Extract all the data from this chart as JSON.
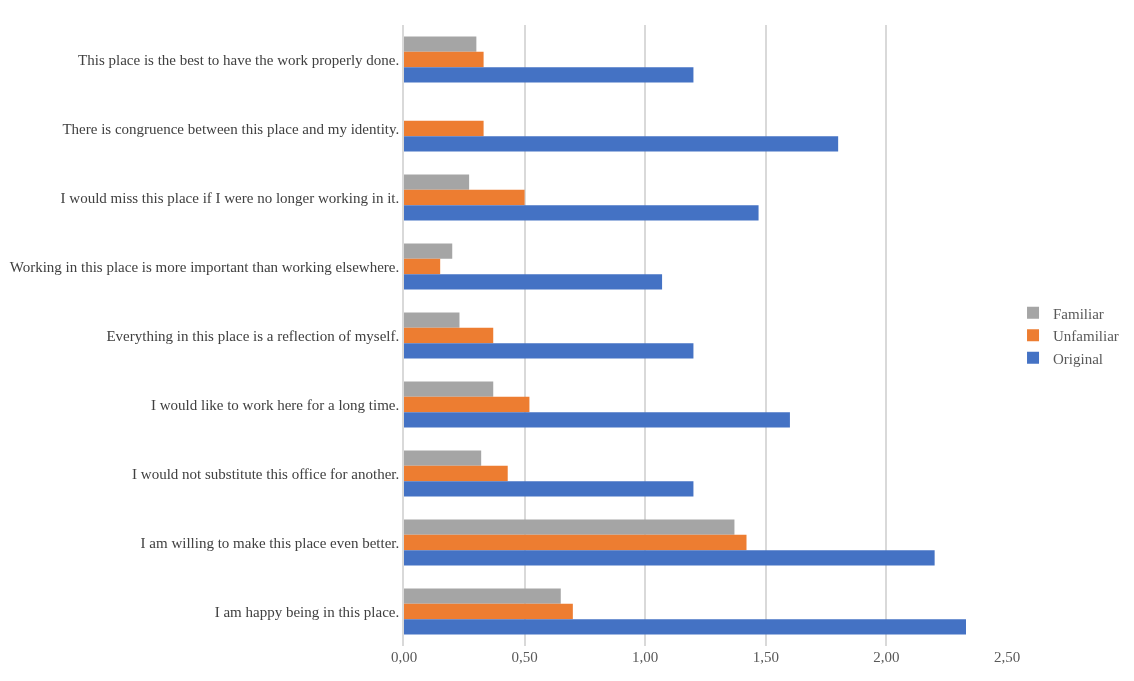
{
  "chart_data": {
    "type": "bar",
    "orientation": "horizontal",
    "categories": [
      "This place is the best to have the work properly done.",
      "There is congruence between this place and my identity.",
      "I would miss this place if I were no longer working in it.",
      "Working in this place is more important than working elsewhere.",
      "Everything in this place is a reflection of myself.",
      "I would like to work here for a long time.",
      "I would not substitute this office for another.",
      "I am willing to make this place even better.",
      "I am happy being in this place."
    ],
    "series": [
      {
        "name": "Familiar",
        "color": "#a5a5a5",
        "values": [
          0.3,
          null,
          0.27,
          0.2,
          0.23,
          0.37,
          0.32,
          1.37,
          0.65
        ]
      },
      {
        "name": "Unfamiliar",
        "color": "#ed7d31",
        "values": [
          0.33,
          0.33,
          0.5,
          0.15,
          0.37,
          0.52,
          0.43,
          1.42,
          0.7
        ]
      },
      {
        "name": "Original",
        "color": "#4472c4",
        "values": [
          1.2,
          1.8,
          1.47,
          1.07,
          1.2,
          1.6,
          1.2,
          2.2,
          2.33
        ]
      }
    ],
    "xlim": [
      0,
      2.5
    ],
    "xticks": [
      {
        "value": 0,
        "label": "0,00"
      },
      {
        "value": 0.5,
        "label": "0,50"
      },
      {
        "value": 1,
        "label": "1,00"
      },
      {
        "value": 1.5,
        "label": "1,50"
      },
      {
        "value": 2,
        "label": "2,00"
      },
      {
        "value": 2.5,
        "label": "2,50"
      }
    ],
    "grid": "x",
    "legend": "right"
  }
}
